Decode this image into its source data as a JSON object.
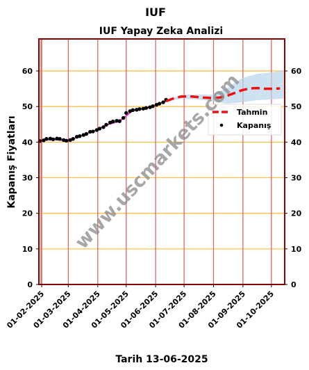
{
  "chart_data": {
    "type": "line",
    "title": "IUF",
    "subtitle": "IUF Yapay Zeka Analizi",
    "xlabel": "Tarih 13-06-2025",
    "ylabel": "Kapanış Fiyatları",
    "watermark": "www.uscmarkets.com",
    "ylim": [
      0,
      69
    ],
    "yticks": [
      0,
      10,
      20,
      30,
      40,
      50,
      60
    ],
    "xlim": [
      "2025-01-29",
      "2025-10-15"
    ],
    "xticks": [
      "01-02-2025",
      "01-03-2025",
      "01-04-2025",
      "01-05-2025",
      "01-06-2025",
      "01-07-2025",
      "01-08-2025",
      "01-09-2025",
      "01-10-2025"
    ],
    "grid": {
      "x": true,
      "y": true,
      "x_color": "#e06666",
      "y_color": "#ffc04d"
    },
    "legend": {
      "position": "right",
      "entries": [
        "Tahmin",
        "Kapanış"
      ]
    },
    "series": [
      {
        "name": "Kapanış",
        "style": "scatter",
        "color": "#000000",
        "x": [
          "2025-01-30",
          "2025-02-03",
          "2025-02-06",
          "2025-02-10",
          "2025-02-13",
          "2025-02-17",
          "2025-02-20",
          "2025-02-24",
          "2025-02-27",
          "2025-03-03",
          "2025-03-06",
          "2025-03-10",
          "2025-03-13",
          "2025-03-17",
          "2025-03-20",
          "2025-03-24",
          "2025-03-27",
          "2025-03-31",
          "2025-04-03",
          "2025-04-07",
          "2025-04-10",
          "2025-04-14",
          "2025-04-17",
          "2025-04-21",
          "2025-04-24",
          "2025-04-28",
          "2025-05-01",
          "2025-05-05",
          "2025-05-08",
          "2025-05-12",
          "2025-05-15",
          "2025-05-19",
          "2025-05-22",
          "2025-05-26",
          "2025-05-29",
          "2025-06-02",
          "2025-06-05",
          "2025-06-09",
          "2025-06-12"
        ],
        "values": [
          40.3,
          40.5,
          40.9,
          41.0,
          40.8,
          41.0,
          40.9,
          40.6,
          40.4,
          40.6,
          40.9,
          41.5,
          41.7,
          42.0,
          42.3,
          42.9,
          43.0,
          43.4,
          43.8,
          44.2,
          44.9,
          45.5,
          45.8,
          46.0,
          45.9,
          46.8,
          48.2,
          48.7,
          49.0,
          49.1,
          49.3,
          49.4,
          49.6,
          49.8,
          50.1,
          50.5,
          50.8,
          51.2,
          51.9
        ]
      },
      {
        "name": "",
        "style": "line",
        "color": "#e033cc",
        "x": [
          "2025-01-30",
          "2025-02-13",
          "2025-02-27",
          "2025-03-13",
          "2025-03-27",
          "2025-04-10",
          "2025-04-24",
          "2025-05-08",
          "2025-05-22",
          "2025-06-05",
          "2025-06-12"
        ],
        "values": [
          40.4,
          40.8,
          40.4,
          41.6,
          43.0,
          44.8,
          45.9,
          48.9,
          49.6,
          50.8,
          51.5
        ]
      },
      {
        "name": "Tahmin",
        "style": "dashed",
        "color": "#ee1111",
        "x": [
          "2025-06-12",
          "2025-06-20",
          "2025-06-28",
          "2025-07-06",
          "2025-07-14",
          "2025-07-22",
          "2025-07-30",
          "2025-08-07",
          "2025-08-15",
          "2025-08-23",
          "2025-08-31",
          "2025-09-08",
          "2025-09-16",
          "2025-09-24",
          "2025-10-02",
          "2025-10-10"
        ],
        "values": [
          51.5,
          52.3,
          52.8,
          52.9,
          52.7,
          52.5,
          52.4,
          52.5,
          53.0,
          53.8,
          54.6,
          55.1,
          55.2,
          55.0,
          55.0,
          55.1
        ]
      },
      {
        "name": "",
        "style": "band",
        "color": "#b8d4ea",
        "x": [
          "2025-06-12",
          "2025-06-28",
          "2025-07-14",
          "2025-07-30",
          "2025-08-15",
          "2025-08-31",
          "2025-09-16",
          "2025-10-02",
          "2025-10-15"
        ],
        "upper": [
          51.7,
          53.3,
          53.4,
          53.3,
          55.2,
          58.0,
          59.2,
          59.6,
          60.3
        ],
        "lower": [
          51.3,
          52.3,
          52.0,
          51.5,
          50.8,
          51.2,
          51.8,
          52.0,
          52.3
        ]
      }
    ]
  }
}
